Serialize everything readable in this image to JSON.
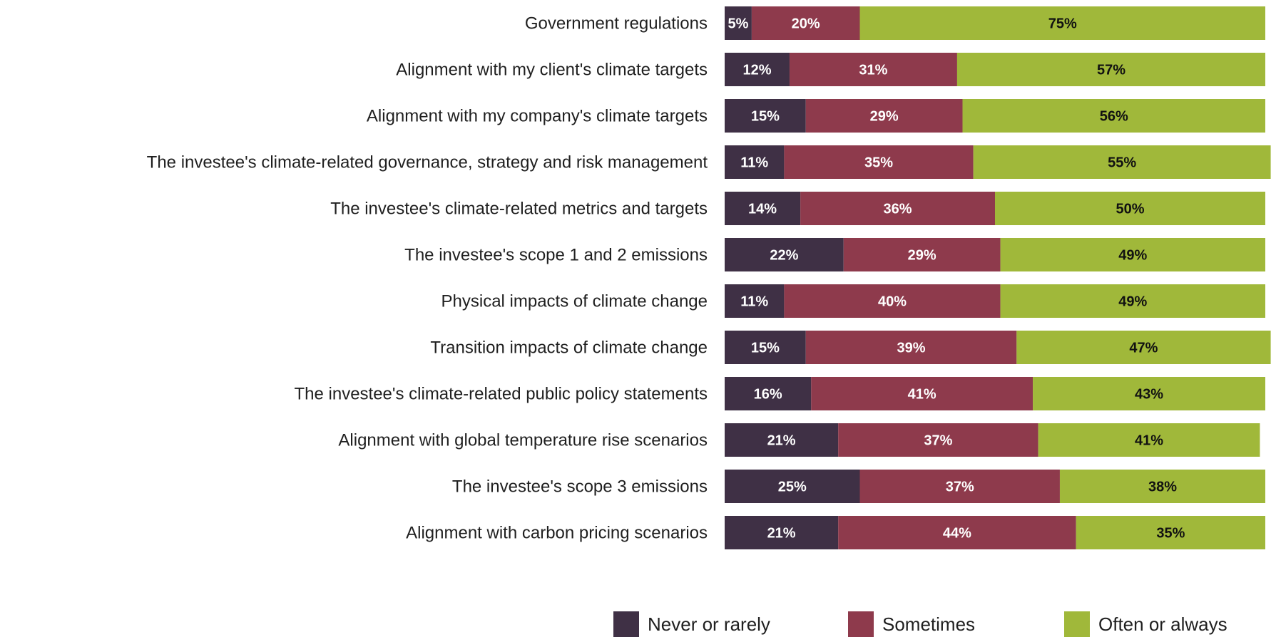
{
  "chart_data": {
    "type": "bar",
    "orientation": "horizontal",
    "stacked": true,
    "categories": [
      "Government regulations",
      "Alignment with my client's climate targets",
      "Alignment with my company's climate targets",
      "The investee's climate-related governance, strategy and risk management",
      "The investee's climate-related metrics and targets",
      "The investee's scope 1 and 2 emissions",
      "Physical impacts of climate change",
      "Transition impacts of climate change",
      "The investee's climate-related public policy statements",
      "Alignment with global temperature rise scenarios",
      "The investee's scope 3 emissions",
      "Alignment with carbon pricing scenarios"
    ],
    "series": [
      {
        "name": "Never or rarely",
        "color": "#3f3045",
        "label_color": "#ffffff",
        "values": [
          5,
          12,
          15,
          11,
          14,
          22,
          11,
          15,
          16,
          21,
          25,
          21
        ]
      },
      {
        "name": "Sometimes",
        "color": "#8e3a4c",
        "label_color": "#ffffff",
        "values": [
          20,
          31,
          29,
          35,
          36,
          29,
          40,
          39,
          41,
          37,
          37,
          44
        ]
      },
      {
        "name": "Often or always",
        "color": "#a0b83a",
        "label_color": "#111111",
        "values": [
          75,
          57,
          56,
          55,
          50,
          49,
          49,
          47,
          43,
          41,
          38,
          35
        ]
      }
    ],
    "value_suffix": "%",
    "xlim": [
      0,
      100
    ],
    "grid": false,
    "legend_position": "bottom-right",
    "title": "",
    "xlabel": "",
    "ylabel": ""
  }
}
